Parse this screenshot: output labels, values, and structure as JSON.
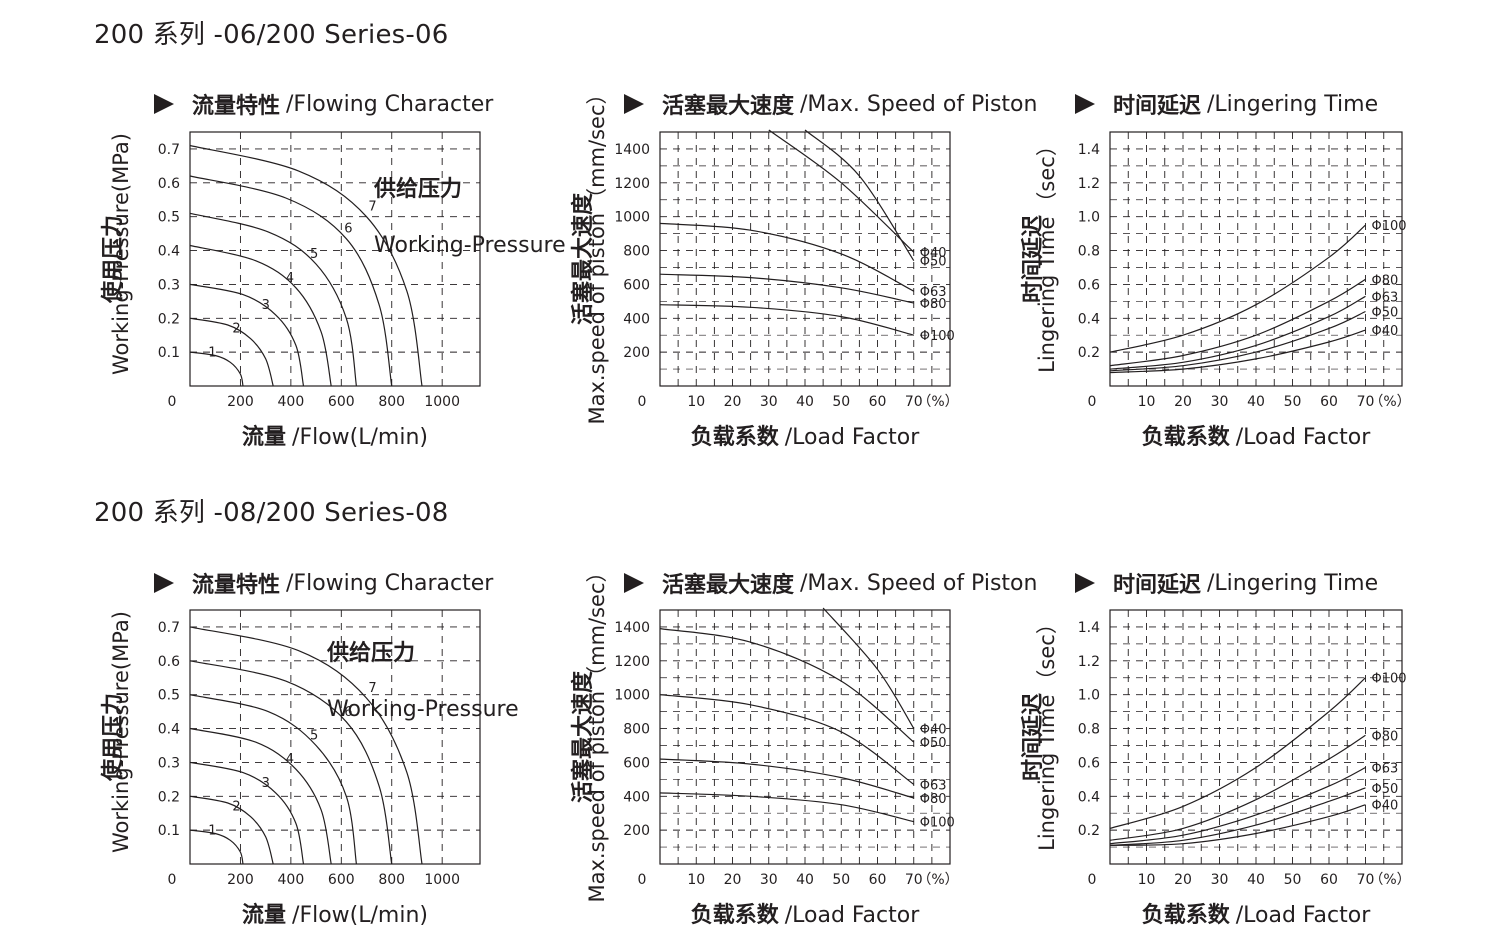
{
  "sections": [
    {
      "heading": "200 系列 -06/200 Series-06",
      "charts": [
        {
          "title_cn": "流量特性",
          "title_en": "/Flowing Character",
          "chart_data": {
            "type": "line",
            "xlabel_cn": "流量",
            "xlabel_en": "/Flow(L/min)",
            "ylabel_cn": "使用压力",
            "ylabel_en": "Working-Pressure(MPa)",
            "x_ticks": [
              "0",
              "200",
              "400",
              "600",
              "800",
              "1000"
            ],
            "y_ticks": [
              "0.1",
              "0.2",
              "0.3",
              "0.4",
              "0.5",
              "0.6",
              "0.7"
            ],
            "xlim": [
              0,
              1150
            ],
            "ylim": [
              0,
              0.75
            ],
            "grid": true,
            "legend_cn": "供给压力",
            "legend_en": "Working-Pressure",
            "series": [
              {
                "name": "1",
                "x": [
                  0,
                  100,
                  160,
                  200,
                  210
                ],
                "y": [
                  0.1,
                  0.09,
                  0.07,
                  0.035,
                  0
                ]
              },
              {
                "name": "2",
                "x": [
                  0,
                  150,
                  240,
                  300,
                  330
                ],
                "y": [
                  0.2,
                  0.18,
                  0.14,
                  0.08,
                  0
                ]
              },
              {
                "name": "3",
                "x": [
                  0,
                  210,
                  340,
                  420,
                  450
                ],
                "y": [
                  0.3,
                  0.27,
                  0.21,
                  0.12,
                  0
                ]
              },
              {
                "name": "4",
                "x": [
                  0,
                  260,
                  420,
                  520,
                  560
                ],
                "y": [
                  0.415,
                  0.37,
                  0.29,
                  0.16,
                  0
                ]
              },
              {
                "name": "5",
                "x": [
                  0,
                  310,
                  500,
                  620,
                  660
                ],
                "y": [
                  0.51,
                  0.455,
                  0.36,
                  0.2,
                  0
                ]
              },
              {
                "name": "6",
                "x": [
                  0,
                  380,
                  620,
                  750,
                  800
                ],
                "y": [
                  0.62,
                  0.555,
                  0.435,
                  0.24,
                  0
                ]
              },
              {
                "name": "7",
                "x": [
                  0,
                  430,
                  700,
                  860,
                  920
                ],
                "y": [
                  0.71,
                  0.635,
                  0.5,
                  0.28,
                  0
                ]
              }
            ]
          }
        },
        {
          "title_cn": "活塞最大速度",
          "title_en": "/Max. Speed of Piston",
          "chart_data": {
            "type": "line",
            "xlabel_cn": "负载系数",
            "xlabel_en": "/Load Factor",
            "ylabel_cn": "活塞最大速度",
            "ylabel_en": "Max.speed of piston",
            "ylabel_unit": "（mm/sec）",
            "x_ticks": [
              "0",
              "10",
              "20",
              "30",
              "40",
              "50",
              "60",
              "70"
            ],
            "x_unit": "（%）",
            "y_ticks": [
              "200",
              "400",
              "600",
              "800",
              "1000",
              "1200",
              "1400"
            ],
            "xlim": [
              0,
              80
            ],
            "ylim": [
              0,
              1500
            ],
            "grid": true,
            "series": [
              {
                "name": "Φ40",
                "x": [
                  30,
                  50,
                  70
                ],
                "y": [
                  1520,
                  1200,
                  790
                ]
              },
              {
                "name": "Φ50",
                "x": [
                  40,
                  55,
                  70
                ],
                "y": [
                  1520,
                  1240,
                  740
                ]
              },
              {
                "name": "Φ63",
                "x": [
                  0,
                  25,
                  50,
                  70
                ],
                "y": [
                  960,
                  920,
                  780,
                  560
                ]
              },
              {
                "name": "Φ80",
                "x": [
                  0,
                  25,
                  50,
                  70
                ],
                "y": [
                  660,
                  640,
                  580,
                  490
                ]
              },
              {
                "name": "Φ100",
                "x": [
                  0,
                  25,
                  50,
                  70
                ],
                "y": [
                  480,
                  465,
                  410,
                  300
                ]
              }
            ]
          }
        },
        {
          "title_cn": "时间延迟",
          "title_en": "/Lingering Time",
          "chart_data": {
            "type": "line",
            "xlabel_cn": "负载系数",
            "xlabel_en": "/Load Factor",
            "ylabel_cn": "时间延迟",
            "ylabel_en": "Lingering Time",
            "ylabel_unit": "（sec）",
            "x_ticks": [
              "0",
              "10",
              "20",
              "30",
              "40",
              "50",
              "60",
              "70"
            ],
            "x_unit": "（%）",
            "y_ticks": [
              "0.2",
              "0.4",
              "0.6",
              "0.8",
              "1.0",
              "1.2",
              "1.4"
            ],
            "xlim": [
              0,
              80
            ],
            "ylim": [
              0,
              1.5
            ],
            "grid": true,
            "series": [
              {
                "name": "Φ100",
                "x": [
                  0,
                  20,
                  40,
                  60,
                  70
                ],
                "y": [
                  0.2,
                  0.3,
                  0.48,
                  0.76,
                  0.95
                ]
              },
              {
                "name": "Φ80",
                "x": [
                  0,
                  20,
                  40,
                  60,
                  70
                ],
                "y": [
                  0.12,
                  0.18,
                  0.3,
                  0.5,
                  0.63
                ]
              },
              {
                "name": "Φ63",
                "x": [
                  0,
                  20,
                  40,
                  60,
                  70
                ],
                "y": [
                  0.1,
                  0.14,
                  0.24,
                  0.41,
                  0.53
                ]
              },
              {
                "name": "Φ50",
                "x": [
                  0,
                  20,
                  40,
                  60,
                  70
                ],
                "y": [
                  0.09,
                  0.12,
                  0.2,
                  0.34,
                  0.44
                ]
              },
              {
                "name": "Φ40",
                "x": [
                  0,
                  20,
                  40,
                  60,
                  70
                ],
                "y": [
                  0.08,
                  0.1,
                  0.16,
                  0.26,
                  0.33
                ]
              }
            ]
          }
        }
      ]
    },
    {
      "heading": "200 系列 -08/200 Series-08",
      "charts": [
        {
          "title_cn": "流量特性",
          "title_en": "/Flowing Character",
          "chart_data": {
            "type": "line",
            "xlabel_cn": "流量",
            "xlabel_en": "/Flow(L/min)",
            "ylabel_cn": "使用压力",
            "ylabel_en": "Working-Pressure(MPa)",
            "x_ticks": [
              "0",
              "200",
              "400",
              "600",
              "800",
              "1000"
            ],
            "y_ticks": [
              "0.1",
              "0.2",
              "0.3",
              "0.4",
              "0.5",
              "0.6",
              "0.7"
            ],
            "xlim": [
              0,
              1150
            ],
            "ylim": [
              0,
              0.75
            ],
            "grid": true,
            "legend_cn": "供给压力",
            "legend_en": "Working-Pressure",
            "series": [
              {
                "name": "1",
                "x": [
                  0,
                  100,
                  160,
                  200,
                  210
                ],
                "y": [
                  0.1,
                  0.09,
                  0.07,
                  0.035,
                  0
                ]
              },
              {
                "name": "2",
                "x": [
                  0,
                  150,
                  240,
                  300,
                  330
                ],
                "y": [
                  0.2,
                  0.18,
                  0.14,
                  0.08,
                  0
                ]
              },
              {
                "name": "3",
                "x": [
                  0,
                  210,
                  340,
                  420,
                  450
                ],
                "y": [
                  0.3,
                  0.27,
                  0.21,
                  0.12,
                  0
                ]
              },
              {
                "name": "4",
                "x": [
                  0,
                  260,
                  420,
                  520,
                  560
                ],
                "y": [
                  0.4,
                  0.36,
                  0.28,
                  0.16,
                  0
                ]
              },
              {
                "name": "5",
                "x": [
                  0,
                  310,
                  500,
                  620,
                  660
                ],
                "y": [
                  0.5,
                  0.45,
                  0.35,
                  0.2,
                  0
                ]
              },
              {
                "name": "6",
                "x": [
                  0,
                  380,
                  620,
                  750,
                  800
                ],
                "y": [
                  0.6,
                  0.54,
                  0.42,
                  0.23,
                  0
                ]
              },
              {
                "name": "7",
                "x": [
                  0,
                  430,
                  700,
                  860,
                  920
                ],
                "y": [
                  0.7,
                  0.63,
                  0.49,
                  0.27,
                  0
                ]
              }
            ]
          }
        },
        {
          "title_cn": "活塞最大速度",
          "title_en": "/Max. Speed of Piston",
          "chart_data": {
            "type": "line",
            "xlabel_cn": "负载系数",
            "xlabel_en": "/Load Factor",
            "ylabel_cn": "活塞最大速度",
            "ylabel_en": "Max.speed of piston",
            "ylabel_unit": "（mm/sec）",
            "x_ticks": [
              "0",
              "10",
              "20",
              "30",
              "40",
              "50",
              "60",
              "70"
            ],
            "x_unit": "（%）",
            "y_ticks": [
              "200",
              "400",
              "600",
              "800",
              "1000",
              "1200",
              "1400"
            ],
            "xlim": [
              0,
              80
            ],
            "ylim": [
              0,
              1500
            ],
            "grid": true,
            "series": [
              {
                "name": "Φ40",
                "x": [
                  45,
                  60,
                  70
                ],
                "y": [
                  1520,
                  1150,
                  800
                ]
              },
              {
                "name": "Φ50",
                "x": [
                  0,
                  25,
                  50,
                  70
                ],
                "y": [
                  1390,
                  1310,
                  1080,
                  720
                ]
              },
              {
                "name": "Φ63",
                "x": [
                  0,
                  25,
                  50,
                  70
                ],
                "y": [
                  1000,
                  940,
                  780,
                  470
                ]
              },
              {
                "name": "Φ80",
                "x": [
                  0,
                  25,
                  50,
                  70
                ],
                "y": [
                  620,
                  590,
                  510,
                  390
                ]
              },
              {
                "name": "Φ100",
                "x": [
                  0,
                  25,
                  50,
                  70
                ],
                "y": [
                  420,
                  400,
                  350,
                  250
                ]
              }
            ]
          }
        },
        {
          "title_cn": "时间延迟",
          "title_en": "/Lingering Time",
          "chart_data": {
            "type": "line",
            "xlabel_cn": "负载系数",
            "xlabel_en": "/Load Factor",
            "ylabel_cn": "时间延迟",
            "ylabel_en": "Lingering Time",
            "ylabel_unit": "（sec）",
            "x_ticks": [
              "0",
              "10",
              "20",
              "30",
              "40",
              "50",
              "60",
              "70"
            ],
            "x_unit": "（%）",
            "y_ticks": [
              "0.2",
              "0.4",
              "0.6",
              "0.8",
              "1.0",
              "1.2",
              "1.4"
            ],
            "xlim": [
              0,
              80
            ],
            "ylim": [
              0,
              1.5
            ],
            "grid": true,
            "series": [
              {
                "name": "Φ100",
                "x": [
                  0,
                  20,
                  40,
                  60,
                  70
                ],
                "y": [
                  0.21,
                  0.34,
                  0.57,
                  0.9,
                  1.1
                ]
              },
              {
                "name": "Φ80",
                "x": [
                  0,
                  20,
                  40,
                  60,
                  70
                ],
                "y": [
                  0.14,
                  0.21,
                  0.38,
                  0.62,
                  0.76
                ]
              },
              {
                "name": "Φ63",
                "x": [
                  0,
                  20,
                  40,
                  60,
                  70
                ],
                "y": [
                  0.12,
                  0.17,
                  0.29,
                  0.46,
                  0.57
                ]
              },
              {
                "name": "Φ50",
                "x": [
                  0,
                  20,
                  40,
                  60,
                  70
                ],
                "y": [
                  0.11,
                  0.14,
                  0.23,
                  0.37,
                  0.45
                ]
              },
              {
                "name": "Φ40",
                "x": [
                  0,
                  20,
                  40,
                  60,
                  70
                ],
                "y": [
                  0.11,
                  0.12,
                  0.18,
                  0.28,
                  0.35
                ]
              }
            ]
          }
        }
      ]
    }
  ]
}
